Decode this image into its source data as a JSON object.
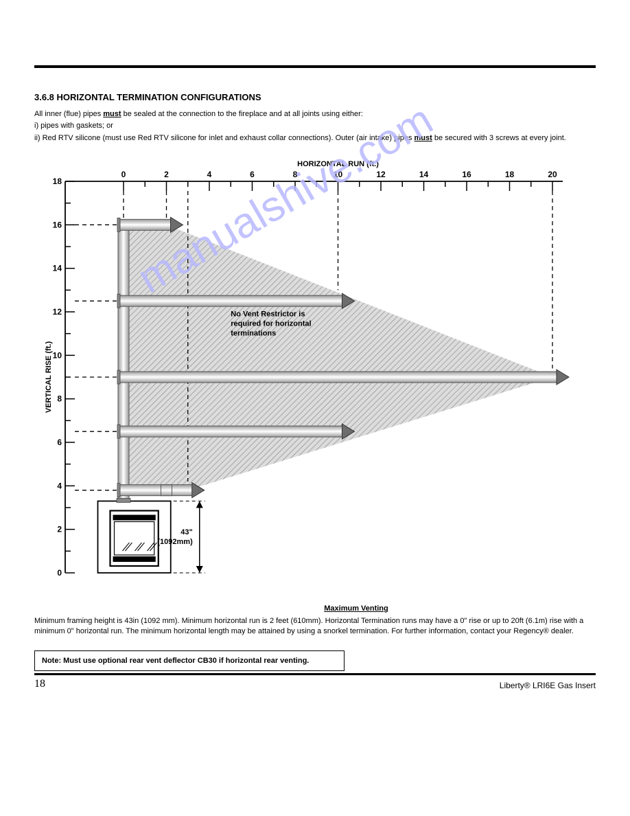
{
  "section_title": "3.6.8 HORIZONTAL TERMINATION CONFIGURATIONS",
  "instructions": {
    "p1_pre": "All inner (flue) pipes ",
    "p1_must": "must",
    "p1_post": " be sealed at the connection to the fireplace and at all joints using either:",
    "li1": "i) pipes with gaskets; or",
    "li2_pre": "ii) Red RTV silicone (must use Red RTV silicone for inlet and exhaust collar connections). Outer (air intake) pipes ",
    "li2_must": "must",
    "li2_post": " be secured with 3 screws at every joint."
  },
  "x_axis_label": "HORIZONTAL RUN (ft.)",
  "y_axis_label": "VERTICAL RISE (ft.)",
  "x_ticks": [
    "0",
    "2",
    "4",
    "6",
    "8",
    "10",
    "12",
    "14",
    "16",
    "18",
    "20"
  ],
  "y_ticks": [
    "18",
    "16",
    "14",
    "12",
    "10",
    "8",
    "6",
    "4",
    "2",
    "0"
  ],
  "restrictor_text": [
    "No Vent Restrictor is",
    "required for horizontal",
    "terminations"
  ],
  "dim_value": "43\"",
  "dim_mm": "(1092mm)",
  "chart_footer_title": "Maximum Venting",
  "chart_footer_body": "Minimum framing height is 43in (1092 mm). Minimum horizontal run is 2 feet (610mm). Horizontal Termination runs may have a 0\" rise or up to 20ft (6.1m) rise with a minimum 0\" horizontal run. The minimum horizontal length may be attained by using a snorkel termination. For further information, contact your Regency® dealer.",
  "note_box": "Note: Must use optional rear vent deflector CB30 if horizontal rear venting.",
  "page_no": "18",
  "doc_id": "Liberty® LRI6E Gas Insert",
  "watermark": "manualshive.com",
  "colors": {
    "hatch": "#cccccc",
    "hatch_line": "#666666",
    "pipe_fill": "#aaaaaa",
    "pipe_dark": "#6d6d6d",
    "tick": "#000000"
  }
}
